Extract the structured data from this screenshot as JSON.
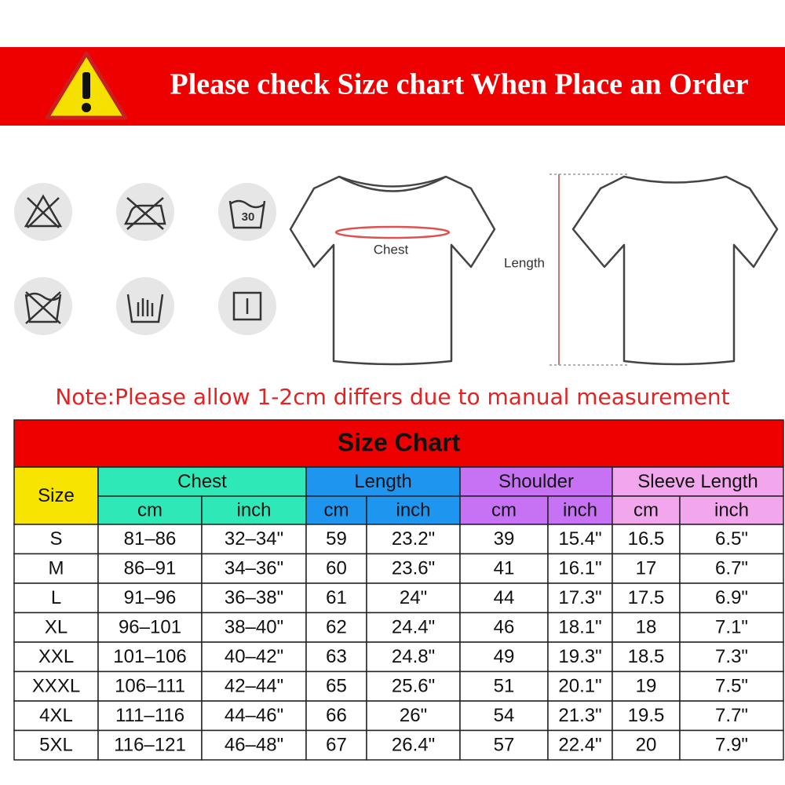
{
  "banner": {
    "title": "Please check Size chart When Place an Order"
  },
  "care_icons": {
    "wash_temperature": "30"
  },
  "diagram": {
    "chest_label": "Chest",
    "length_label": "Length"
  },
  "note": "Note:Please allow 1-2cm differs due to manual measurement",
  "table": {
    "title": "Size Chart",
    "size_header": "Size",
    "groups": [
      {
        "name": "Chest",
        "units": [
          "cm",
          "inch"
        ]
      },
      {
        "name": "Length",
        "units": [
          "cm",
          "inch"
        ]
      },
      {
        "name": "Shoulder",
        "units": [
          "cm",
          "inch"
        ]
      },
      {
        "name": "Sleeve Length",
        "units": [
          "cm",
          "inch"
        ]
      }
    ],
    "rows": [
      [
        "S",
        "81–86",
        "32–34\"",
        "59",
        "23.2\"",
        "39",
        "15.4\"",
        "16.5",
        "6.5\""
      ],
      [
        "M",
        "86–91",
        "34–36\"",
        "60",
        "23.6\"",
        "41",
        "16.1\"",
        "17",
        "6.7\""
      ],
      [
        "L",
        "91–96",
        "36–38\"",
        "61",
        "24\"",
        "44",
        "17.3\"",
        "17.5",
        "6.9\""
      ],
      [
        "XL",
        "96–101",
        "38–40\"",
        "62",
        "24.4\"",
        "46",
        "18.1\"",
        "18",
        "7.1\""
      ],
      [
        "XXL",
        "101–106",
        "40–42\"",
        "63",
        "24.8\"",
        "49",
        "19.3\"",
        "18.5",
        "7.3\""
      ],
      [
        "XXXL",
        "106–111",
        "42–44\"",
        "65",
        "25.6\"",
        "51",
        "20.1\"",
        "19",
        "7.5\""
      ],
      [
        "4XL",
        "111–116",
        "44–46\"",
        "66",
        "26\"",
        "54",
        "21.3\"",
        "19.5",
        "7.7\""
      ],
      [
        "5XL",
        "116–121",
        "46–48\"",
        "67",
        "26.4\"",
        "57",
        "22.4\"",
        "20",
        "7.9\""
      ]
    ]
  }
}
